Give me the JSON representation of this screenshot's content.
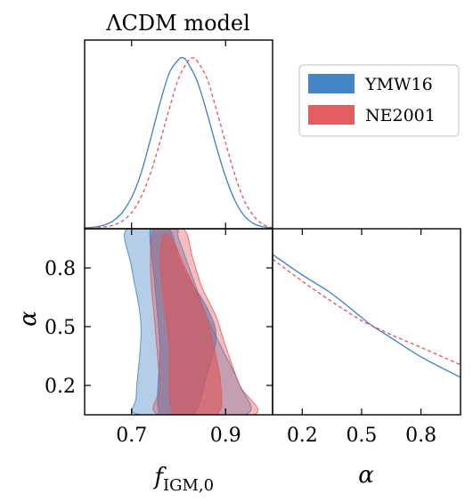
{
  "chart_data": {
    "type": "corner-plot",
    "title": "ΛCDM model",
    "parameters": [
      {
        "name": "f_IGM,0",
        "label_main": "f",
        "label_sub": "IGM,0",
        "range": [
          0.6,
          1.0
        ],
        "ticks": [
          0.7,
          0.9
        ],
        "tick_labels": [
          "0.7",
          "0.9"
        ]
      },
      {
        "name": "alpha",
        "label": "α",
        "range": [
          0.05,
          1.0
        ],
        "ticks": [
          0.2,
          0.5,
          0.8
        ],
        "tick_labels": [
          "0.2",
          "0.5",
          "0.8"
        ]
      }
    ],
    "legend": {
      "placement": "top-right",
      "entries": [
        {
          "name": "YMW16",
          "color": "#3a7fc2"
        },
        {
          "name": "NE2001",
          "color": "#e05558"
        }
      ]
    },
    "series": [
      {
        "name": "YMW16",
        "color": "#3a7fc2",
        "line_style": "solid",
        "f_igm_1d": {
          "x": [
            0.6,
            0.62,
            0.64,
            0.66,
            0.68,
            0.7,
            0.72,
            0.74,
            0.76,
            0.78,
            0.8,
            0.81,
            0.82,
            0.84,
            0.86,
            0.88,
            0.9,
            0.92,
            0.94,
            0.96,
            0.98,
            1.0
          ],
          "y": [
            0.0,
            0.004,
            0.015,
            0.04,
            0.09,
            0.18,
            0.32,
            0.52,
            0.73,
            0.91,
            0.99,
            1.0,
            0.97,
            0.86,
            0.68,
            0.48,
            0.3,
            0.16,
            0.07,
            0.025,
            0.006,
            0.0
          ]
        },
        "alpha_1d": {
          "x": [
            0.05,
            0.2,
            0.35,
            0.5,
            0.55,
            0.65,
            0.8,
            1.0
          ],
          "y": [
            0.95,
            0.82,
            0.7,
            0.55,
            0.5,
            0.42,
            0.3,
            0.17
          ]
        },
        "contour_1sigma": [
          [
            0.76,
            0.05
          ],
          [
            0.83,
            0.05
          ],
          [
            0.86,
            0.25
          ],
          [
            0.88,
            0.45
          ],
          [
            0.86,
            0.6
          ],
          [
            0.82,
            0.75
          ],
          [
            0.8,
            0.85
          ],
          [
            0.78,
            1.0
          ],
          [
            0.74,
            1.0
          ],
          [
            0.75,
            0.7
          ],
          [
            0.76,
            0.4
          ]
        ],
        "contour_2sigma": [
          [
            0.71,
            0.15
          ],
          [
            0.72,
            0.05
          ],
          [
            0.94,
            0.05
          ],
          [
            0.93,
            0.2
          ],
          [
            0.89,
            0.4
          ],
          [
            0.86,
            0.55
          ],
          [
            0.83,
            0.75
          ],
          [
            0.8,
            0.95
          ],
          [
            0.79,
            1.0
          ],
          [
            0.69,
            1.0
          ],
          [
            0.7,
            0.8
          ],
          [
            0.72,
            0.5
          ]
        ]
      },
      {
        "name": "NE2001",
        "color": "#e05558",
        "line_style": "dashed",
        "f_igm_1d": {
          "x": [
            0.6,
            0.64,
            0.66,
            0.68,
            0.7,
            0.72,
            0.74,
            0.76,
            0.78,
            0.8,
            0.82,
            0.83,
            0.84,
            0.86,
            0.88,
            0.9,
            0.92,
            0.94,
            0.96,
            0.98,
            1.0
          ],
          "y": [
            0.0,
            0.005,
            0.015,
            0.04,
            0.09,
            0.18,
            0.32,
            0.5,
            0.7,
            0.88,
            0.98,
            1.0,
            0.98,
            0.88,
            0.7,
            0.5,
            0.31,
            0.16,
            0.07,
            0.02,
            0.0
          ]
        },
        "alpha_1d": {
          "x": [
            0.05,
            0.2,
            0.35,
            0.5,
            0.55,
            0.65,
            0.8,
            1.0
          ],
          "y": [
            0.92,
            0.78,
            0.65,
            0.53,
            0.5,
            0.44,
            0.36,
            0.25
          ]
        },
        "contour_1sigma": [
          [
            0.79,
            0.05
          ],
          [
            0.88,
            0.05
          ],
          [
            0.89,
            0.2
          ],
          [
            0.87,
            0.45
          ],
          [
            0.85,
            0.6
          ],
          [
            0.83,
            0.72
          ],
          [
            0.81,
            0.82
          ],
          [
            0.79,
            0.93
          ],
          [
            0.77,
            0.97
          ],
          [
            0.76,
            0.85
          ],
          [
            0.77,
            0.6
          ],
          [
            0.78,
            0.4
          ]
        ],
        "contour_2sigma": [
          [
            0.76,
            0.2
          ],
          [
            0.76,
            0.05
          ],
          [
            0.96,
            0.05
          ],
          [
            0.93,
            0.2
          ],
          [
            0.9,
            0.4
          ],
          [
            0.88,
            0.55
          ],
          [
            0.85,
            0.7
          ],
          [
            0.83,
            0.85
          ],
          [
            0.81,
            1.0
          ],
          [
            0.75,
            1.0
          ],
          [
            0.74,
            0.8
          ],
          [
            0.75,
            0.5
          ]
        ]
      }
    ]
  }
}
